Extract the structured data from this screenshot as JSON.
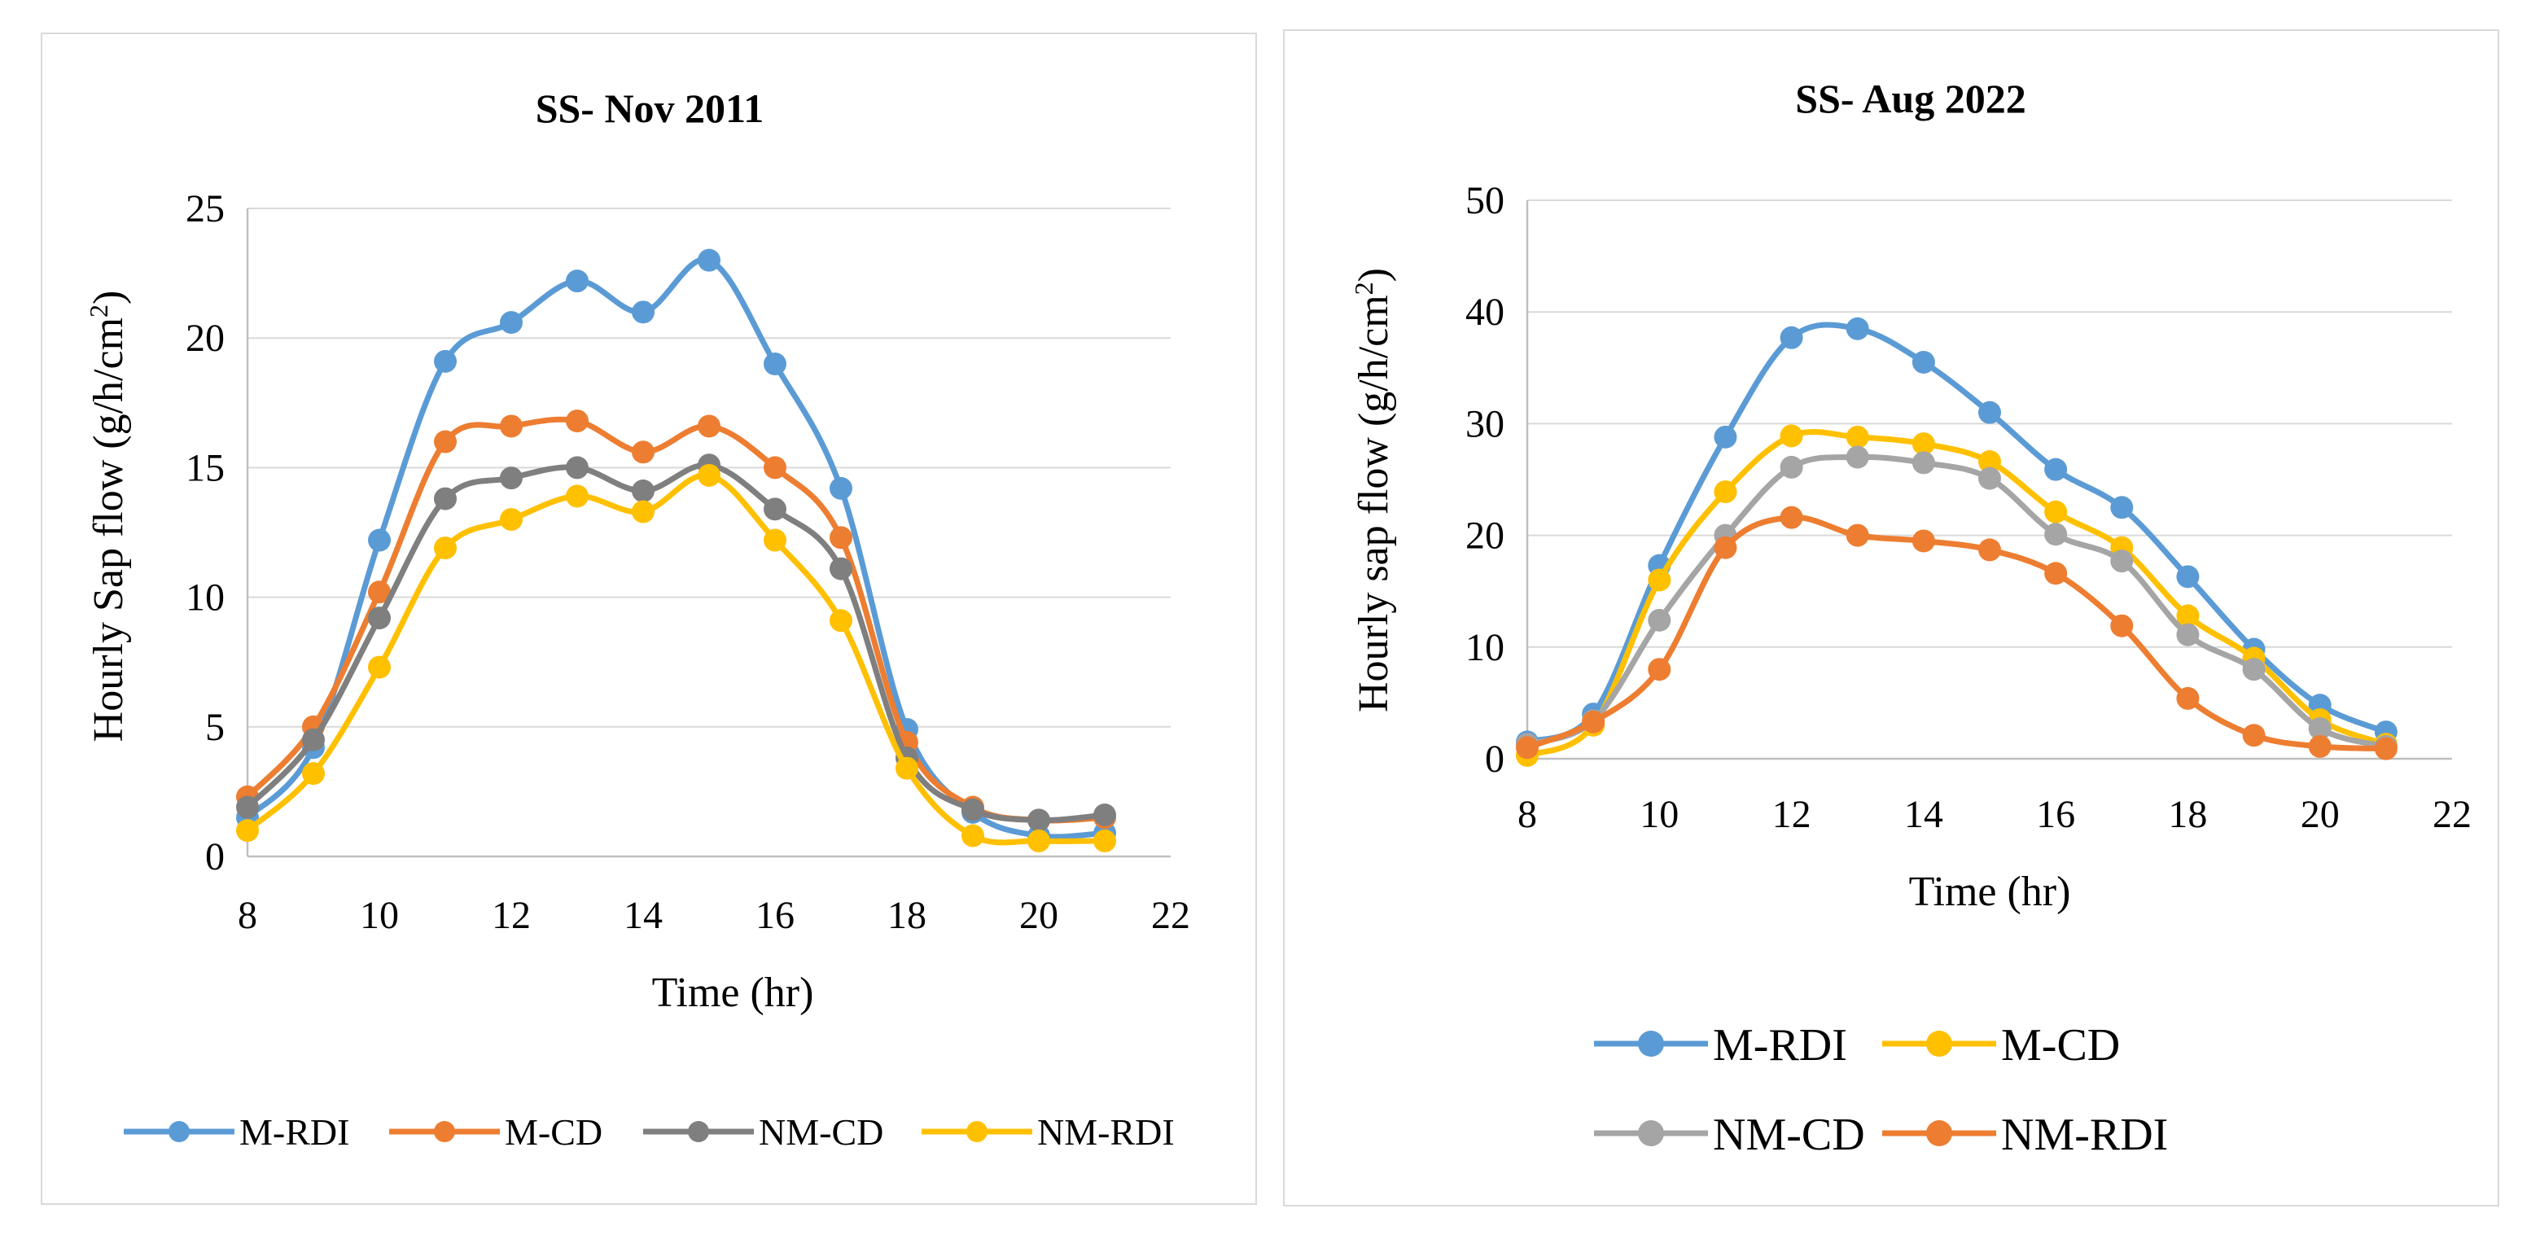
{
  "chart_data": [
    {
      "type": "line",
      "title": "SS- Nov 2011",
      "xlabel": "Time (hr)",
      "ylabel": "Hourly Sap flow (g/h/cm²)",
      "xlim": [
        8,
        22
      ],
      "ylim": [
        0,
        25
      ],
      "xticks": [
        8,
        10,
        12,
        14,
        16,
        18,
        20,
        22
      ],
      "yticks": [
        0,
        5,
        10,
        15,
        20,
        25
      ],
      "x": [
        8,
        9,
        10,
        11,
        12,
        13,
        14,
        15,
        16,
        17,
        18,
        19,
        20,
        21
      ],
      "series": [
        {
          "name": "M-RDI",
          "color": "#5b9bd5",
          "values": [
            1.5,
            4.2,
            12.2,
            19.1,
            20.6,
            22.2,
            21.0,
            23.0,
            19.0,
            14.2,
            4.9,
            1.7,
            0.8,
            0.9
          ]
        },
        {
          "name": "M-CD",
          "color": "#ed7d31",
          "values": [
            2.3,
            5.0,
            10.2,
            16.0,
            16.6,
            16.8,
            15.6,
            16.6,
            15.0,
            12.3,
            4.4,
            1.9,
            1.4,
            1.5
          ]
        },
        {
          "name": "NM-CD",
          "color": "#7f7f7f",
          "values": [
            1.9,
            4.5,
            9.2,
            13.8,
            14.6,
            15.0,
            14.1,
            15.1,
            13.4,
            11.1,
            3.8,
            1.8,
            1.4,
            1.6
          ]
        },
        {
          "name": "NM-RDI",
          "color": "#ffc000",
          "values": [
            1.0,
            3.2,
            7.3,
            11.9,
            13.0,
            13.9,
            13.3,
            14.7,
            12.2,
            9.1,
            3.4,
            0.8,
            0.6,
            0.6
          ]
        }
      ],
      "legend": "bottom"
    },
    {
      "type": "line",
      "title": "SS- Aug 2022",
      "xlabel": "Time (hr)",
      "ylabel": "Hourly sap flow (g/h/cm²)",
      "xlim": [
        8,
        22
      ],
      "ylim": [
        0,
        50
      ],
      "xticks": [
        8,
        10,
        12,
        14,
        16,
        18,
        20,
        22
      ],
      "yticks": [
        0,
        10,
        20,
        30,
        40,
        50
      ],
      "x": [
        8,
        9,
        10,
        11,
        12,
        13,
        14,
        15,
        16,
        17,
        18,
        19,
        20,
        21
      ],
      "series": [
        {
          "name": "M-RDI",
          "color": "#5b9bd5",
          "values": [
            1.5,
            4.0,
            17.3,
            28.8,
            37.7,
            38.5,
            35.5,
            31.0,
            25.9,
            22.5,
            16.3,
            9.8,
            4.8,
            2.4
          ]
        },
        {
          "name": "M-CD",
          "color": "#ffc000",
          "values": [
            0.3,
            3.0,
            16.0,
            23.9,
            28.9,
            28.8,
            28.2,
            26.6,
            22.1,
            18.9,
            12.8,
            9.0,
            3.5,
            1.3
          ]
        },
        {
          "name": "NM-CD",
          "color": "#a5a5a5",
          "values": [
            1.3,
            3.4,
            12.4,
            20.0,
            26.1,
            27.0,
            26.5,
            25.1,
            20.1,
            17.7,
            11.1,
            8.0,
            2.7,
            1.1
          ]
        },
        {
          "name": "NM-RDI",
          "color": "#ed7d31",
          "values": [
            1.0,
            3.3,
            8.0,
            18.9,
            21.6,
            20.0,
            19.5,
            18.7,
            16.6,
            11.9,
            5.4,
            2.1,
            1.1,
            0.9
          ]
        }
      ],
      "legend": "bottom"
    }
  ]
}
